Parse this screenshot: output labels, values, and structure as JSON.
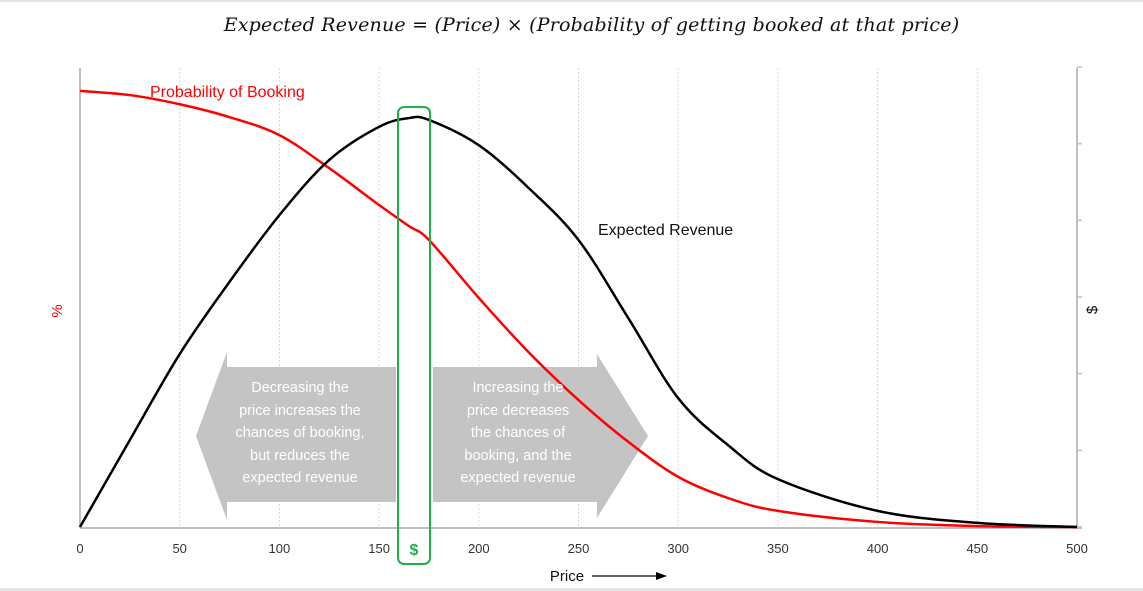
{
  "title": "Expected Revenue = (Price) × (Probability of getting booked at that price)",
  "axes": {
    "x_label": "Price",
    "x_ticks": [
      "0",
      "50",
      "100",
      "150",
      "200",
      "250",
      "300",
      "350",
      "400",
      "450",
      "500"
    ],
    "y_left_label": "%",
    "y_right_label": "$"
  },
  "labels": {
    "probability": "Probability of Booking",
    "revenue": "Expected Revenue",
    "optimum_marker": "$"
  },
  "annotations": {
    "left_arrow": [
      "Decreasing the",
      "price increases the",
      "chances of booking,",
      "but reduces the",
      "expected revenue"
    ],
    "right_arrow": [
      "Increasing the",
      "price decreases",
      "the chances of",
      "booking, and the",
      "expected revenue"
    ]
  },
  "colors": {
    "probability": "#ff0000",
    "revenue": "#000000",
    "optimum": "#1fb04a",
    "arrow": "#c4c4c4",
    "axis": "#bfbfbf",
    "grid": "#d9d9d9"
  },
  "chart_data": {
    "type": "line",
    "title": "Expected Revenue = (Price) × (Probability of getting booked at that price)",
    "xlabel": "Price",
    "ylabel_left": "%",
    "ylabel_right": "$",
    "xlim": [
      0,
      500
    ],
    "x_ticks": [
      0,
      50,
      100,
      150,
      200,
      250,
      300,
      350,
      400,
      450,
      500
    ],
    "grid": "vertical dotted at each x tick",
    "x": [
      0,
      25,
      50,
      75,
      100,
      125,
      150,
      165,
      175,
      200,
      225,
      250,
      275,
      300,
      325,
      350,
      400,
      450,
      500
    ],
    "series": [
      {
        "name": "Probability of Booking",
        "axis": "left (%)",
        "color": "#ff0000",
        "values": [
          94.8,
          93.9,
          91.9,
          89.1,
          85.2,
          78.0,
          70.0,
          65.4,
          62.4,
          49.8,
          38.0,
          27.6,
          18.5,
          10.9,
          6.3,
          3.5,
          1.1,
          0.2,
          0.0
        ]
      },
      {
        "name": "Expected Revenue",
        "axis": "right ($), relative scale",
        "color": "#000000",
        "values": [
          0,
          18.9,
          37.6,
          53.3,
          67.8,
          79.8,
          87.0,
          88.9,
          88.5,
          83.0,
          73.7,
          62.4,
          45.4,
          28.0,
          17.8,
          10.4,
          3.5,
          0.9,
          0.0
        ]
      }
    ],
    "annotations": [
      {
        "type": "highlight_band",
        "x_range": [
          160,
          175
        ],
        "label": "$",
        "meaning": "optimal price (max expected revenue)"
      },
      {
        "type": "arrow_left",
        "text": "Decreasing the price increases the chances of booking, but reduces the expected revenue"
      },
      {
        "type": "arrow_right",
        "text": "Increasing the price decreases the chances of booking, and the expected revenue"
      }
    ],
    "legend": "inline labels (Probability of Booking near top-left, Expected Revenue right of peak)"
  }
}
